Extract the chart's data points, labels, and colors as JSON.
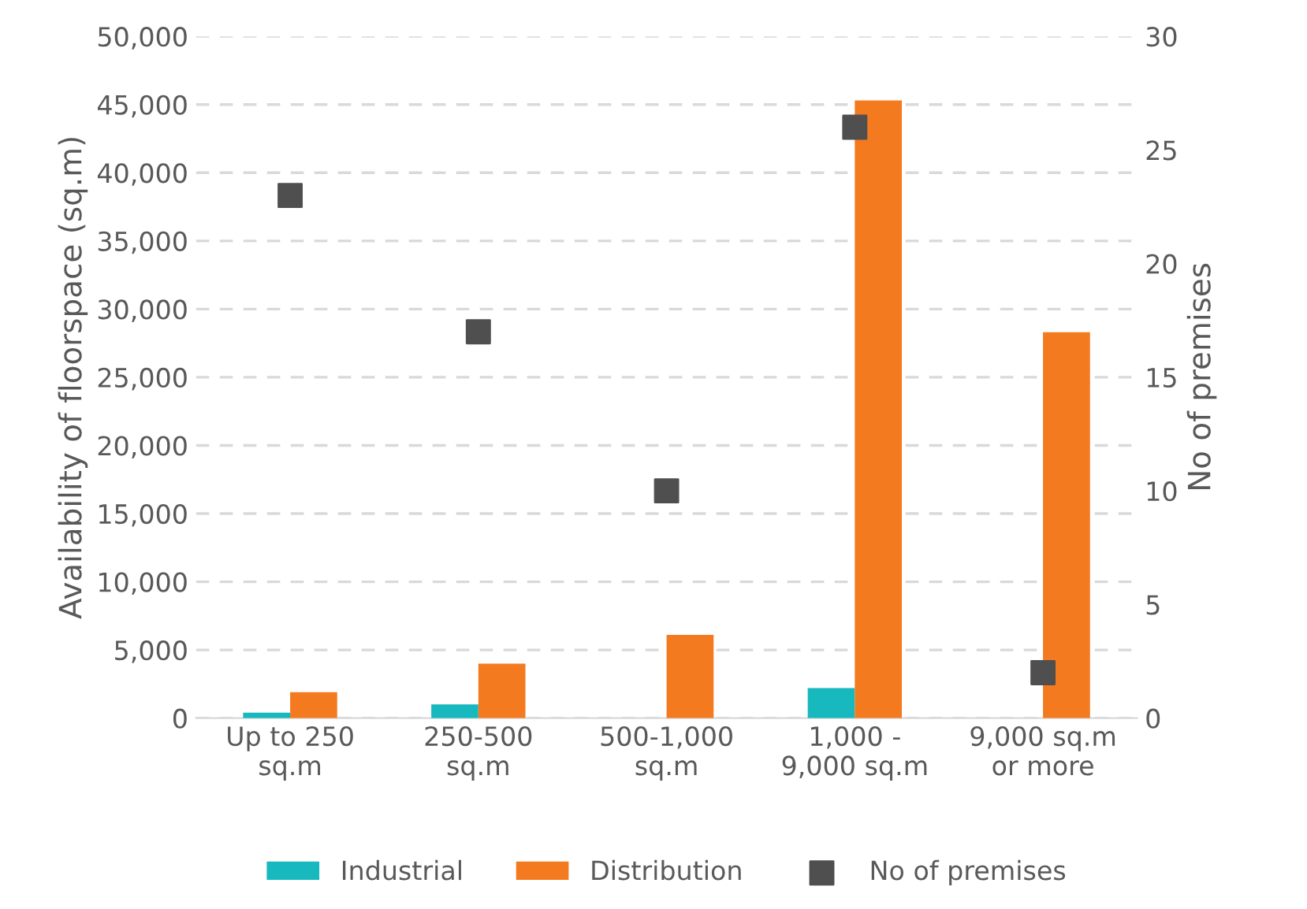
{
  "chart_data": {
    "type": "bar",
    "categories": [
      "Up to 250\nsq.m",
      "250-500\nsq.m",
      "500-1,000\nsq.m",
      "1,000 -\n9,000 sq.m",
      "9,000 sq.m\nor more"
    ],
    "ylabel": "Availability of floorspace (sq.m)",
    "y2label": "No of premises",
    "series": [
      {
        "name": "Industrial",
        "color": "#17b8be",
        "values": [
          400,
          1000,
          0,
          2200,
          0
        ]
      },
      {
        "name": "Distribution",
        "color": "#f47a20",
        "values": [
          1900,
          4000,
          6100,
          45300,
          28300
        ]
      },
      {
        "name": "No of premises",
        "color": "#4f4f4f",
        "type": "scatter",
        "axis": "y2",
        "marker": "square",
        "values": [
          23,
          17,
          10,
          26,
          2
        ]
      }
    ],
    "ylim": [
      0,
      50000
    ],
    "yticks": [
      {
        "value": 0,
        "label": "0"
      },
      {
        "value": 5000,
        "label": "5,000"
      },
      {
        "value": 10000,
        "label": "10,000"
      },
      {
        "value": 15000,
        "label": "15,000"
      },
      {
        "value": 20000,
        "label": "20,000"
      },
      {
        "value": 25000,
        "label": "25,000"
      },
      {
        "value": 30000,
        "label": "30,000"
      },
      {
        "value": 35000,
        "label": "35,000"
      },
      {
        "value": 40000,
        "label": "40,000"
      },
      {
        "value": 45000,
        "label": "45,000"
      },
      {
        "value": 50000,
        "label": "50,000"
      }
    ],
    "y2lim": [
      0,
      30
    ],
    "y2ticks": [
      0,
      5,
      10,
      15,
      20,
      25,
      30
    ],
    "grid": "y",
    "legend": "bottom"
  }
}
